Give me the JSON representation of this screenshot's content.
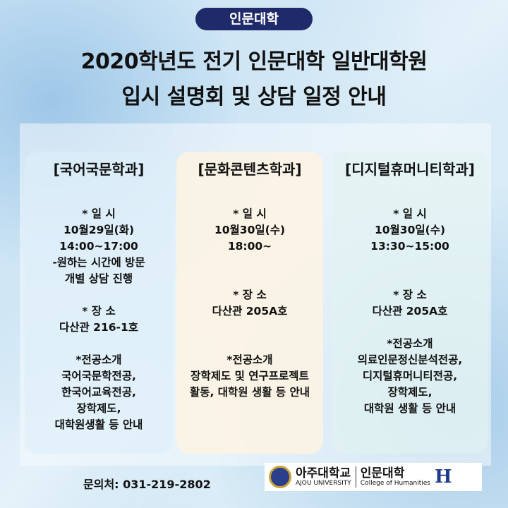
{
  "badge": "인문대학",
  "title_line1": "2020학년도 전기 인문대학 일반대학원",
  "title_line2": "입시 설명회 및 상담 일정 안내",
  "columns": [
    {
      "heading": "[국어국문학과]",
      "lines": [
        "* 일 시",
        "10월29일(화)",
        "14:00~17:00",
        "-원하는 시간에 방문",
        "개별 상담 진행",
        "",
        "* 장 소",
        "다산관 216-1호",
        "",
        "*전공소개",
        "국어국문학전공,",
        "한국어교육전공,",
        "장학제도,",
        "대학원생활 등 안내"
      ]
    },
    {
      "heading": "[문화콘텐츠학과]",
      "lines": [
        "* 일 시",
        "10월30일(수)",
        "18:00~",
        "",
        "",
        "* 장 소",
        "다산관 205A호",
        "",
        "",
        "*전공소개",
        "장학제도 및 연구프로젝트",
        "활동, 대학원 생활 등 안내"
      ]
    },
    {
      "heading": "[디지털휴머니티학과]",
      "lines": [
        "* 일 시",
        "10월30일(수)",
        "13:30~15:00",
        "",
        "",
        "* 장 소",
        "다산관 205A호",
        "",
        "*전공소개",
        "의료인문정신분석전공,",
        "디지털휴머니티전공,",
        "장학제도,",
        "대학원 생활 등 안내"
      ]
    }
  ],
  "contact": "문의처: 031-219-2802",
  "logo": {
    "univ_kr": "아주대학교",
    "univ_en": "AJOU UNIVERSITY",
    "college_kr": "인문대학",
    "college_en": "College of Humanities"
  }
}
